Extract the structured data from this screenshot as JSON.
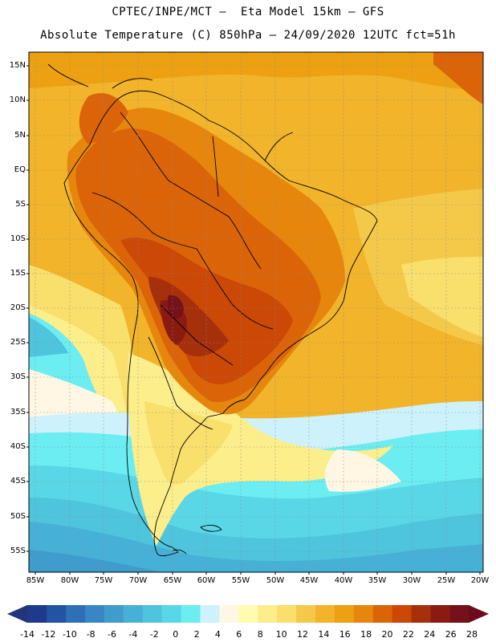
{
  "header": {
    "title_line1": "CPTEC/INPE/MCT –  Eta Model 15km – GFS",
    "title_line2": "Absolute Temperature (C) 850hPa – 24/09/2020 12UTC fct=51h"
  },
  "map": {
    "variable": "Absolute Temperature",
    "units": "C",
    "level": "850hPa",
    "lat_labels": [
      "15N",
      "10N",
      "5N",
      "EQ",
      "5S",
      "10S",
      "15S",
      "20S",
      "25S",
      "30S",
      "35S",
      "40S",
      "45S",
      "50S",
      "55S"
    ],
    "lon_labels": [
      "85W",
      "80W",
      "75W",
      "70W",
      "65W",
      "60W",
      "55W",
      "50W",
      "45W",
      "40W",
      "35W",
      "30W",
      "25W",
      "20W"
    ]
  },
  "colorbar": {
    "labels": [
      "-14",
      "-12",
      "-10",
      "-8",
      "-6",
      "-4",
      "-2",
      "0",
      "2",
      "4",
      "6",
      "8",
      "10",
      "12",
      "14",
      "16",
      "18",
      "20",
      "22",
      "24",
      "26",
      "28"
    ],
    "colors": [
      "#1f3a8a",
      "#2354a4",
      "#2f6fb6",
      "#3a86c4",
      "#3f9ccc",
      "#47b0d6",
      "#4fc4dd",
      "#5ad7e6",
      "#6bedf2",
      "#cdf2fb",
      "#fff6e4",
      "#fffbb0",
      "#fcee8a",
      "#f9df6c",
      "#f4c94a",
      "#f1b42a",
      "#eda112",
      "#e7860c",
      "#db6409",
      "#cb4806",
      "#a7300c",
      "#8a1b11",
      "#74111b"
    ],
    "end_left_color": "#22357c",
    "end_right_color": "#6e0a1d"
  }
}
